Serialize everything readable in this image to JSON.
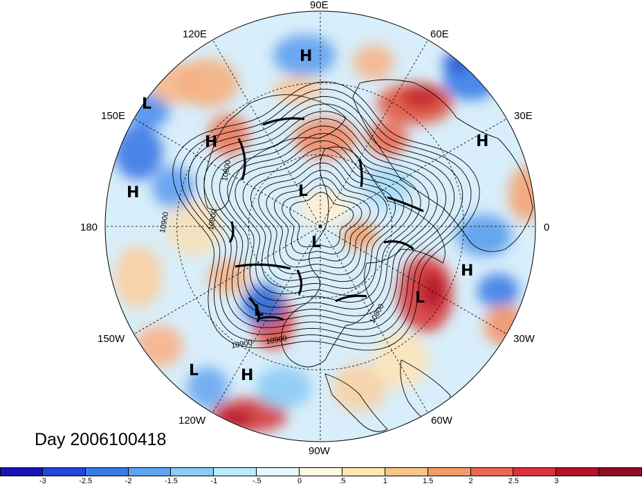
{
  "map": {
    "projection": "polar-stereographic-north",
    "lon_labels": [
      {
        "text": "90E"
      },
      {
        "text": "60E"
      },
      {
        "text": "120E"
      },
      {
        "text": "30E"
      },
      {
        "text": "150E"
      },
      {
        "text": "180"
      },
      {
        "text": "0"
      },
      {
        "text": "150W"
      },
      {
        "text": "30W"
      },
      {
        "text": "120W"
      },
      {
        "text": "60W"
      },
      {
        "text": "90W"
      }
    ],
    "contour_labels": [
      "10800",
      "10900",
      "10800",
      "10900",
      "10900",
      "10800"
    ],
    "pressure_centers": [
      {
        "type": "H"
      },
      {
        "type": "L"
      },
      {
        "type": "H"
      },
      {
        "type": "H"
      },
      {
        "type": "H"
      },
      {
        "type": "L"
      },
      {
        "type": "L"
      },
      {
        "type": "H"
      },
      {
        "type": "L"
      },
      {
        "type": "L"
      },
      {
        "type": "L"
      },
      {
        "type": "H"
      }
    ]
  },
  "day_label": "Day 2006100418",
  "colorbar": {
    "colors": [
      "#1a12b5",
      "#2346d6",
      "#3a7ae8",
      "#5fa3ef",
      "#8cccf6",
      "#b9ecfb",
      "#e6f9fd",
      "#fefbe1",
      "#fde9b0",
      "#f9c589",
      "#f39b69",
      "#ea6651",
      "#d9323c",
      "#b8112a",
      "#920b22"
    ],
    "ticks": [
      "-3",
      "-2.5",
      "-2",
      "-1.5",
      "-1",
      "-.5",
      "0",
      ".5",
      "1",
      "1.5",
      "2",
      "2.5",
      "3"
    ]
  }
}
